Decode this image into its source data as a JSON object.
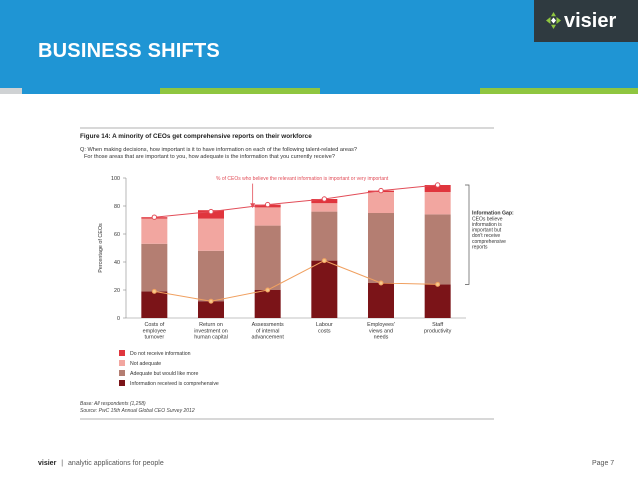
{
  "slide": {
    "title": "BUSINESS SHIFTS",
    "logo_text": "visier",
    "footer_brand": "visier",
    "footer_sep": "|",
    "footer_tagline": "analytic applications for people",
    "page_label": "Page 7"
  },
  "colors": {
    "header_blue": "#1f95d4",
    "logo_bg": "#2f3a40",
    "stripes": [
      "#cfd2d4",
      "#1f95d4",
      "#8fc640",
      "#1f95d4",
      "#8fc640"
    ],
    "not_received": "#e0353d",
    "not_adequate": "#f2a6a0",
    "adequate_more": "#b47e72",
    "comprehensive": "#7b1418",
    "important_line": "#e24d58",
    "comprehensive_line": "#f0a060"
  },
  "chart_data": {
    "type": "bar",
    "stacked": true,
    "title": "Figure 14: A minority of CEOs get comprehensive reports on their workforce",
    "question_line1": "Q: When making decisions, how important is it to have information on each of the following talent-related areas?",
    "question_line2": "For those areas that are important to you, how adequate is the information that you currently receive?",
    "ylabel": "Percentage of CEOs",
    "ylim": [
      0,
      100
    ],
    "yticks": [
      "0",
      "20",
      "40",
      "60",
      "80",
      "100"
    ],
    "categories": [
      [
        "Costs of",
        "employee",
        "turnover"
      ],
      [
        "Return on",
        "investment on",
        "human capital"
      ],
      [
        "Assessments",
        "of internal",
        "advancement"
      ],
      [
        "Labour",
        "costs"
      ],
      [
        "Employees'",
        "views and",
        "needs"
      ],
      [
        "Staff",
        "productivity"
      ]
    ],
    "series": [
      {
        "name": "Information received is comprehensive",
        "values": [
          19,
          12,
          20,
          41,
          25,
          24
        ]
      },
      {
        "name": "Adequate but would like more",
        "values": [
          34,
          36,
          46,
          35,
          50,
          50
        ]
      },
      {
        "name": "Not adequate",
        "values": [
          18,
          23,
          13,
          6,
          15,
          16
        ]
      },
      {
        "name": "Do not receive information",
        "values": [
          1,
          6,
          2,
          3,
          1,
          5
        ]
      }
    ],
    "legend_order": [
      "Do not receive information",
      "Not adequate",
      "Adequate but would like more",
      "Information received is comprehensive"
    ],
    "important_line": [
      72,
      76,
      81,
      85,
      91,
      95
    ],
    "comprehensive_line": [
      19,
      12,
      20,
      41,
      25,
      24
    ],
    "annotation_important": "% of CEOs who believe the relevant information is important or very important",
    "gap_title": "Information Gap:",
    "gap_text": [
      "CEOs believe",
      "information is",
      "important but",
      "don't receive",
      "comprehensive",
      "reports"
    ],
    "base": "Base: All respondents (1,258)",
    "source": "Source: PwC 15th Annual Global CEO Survey 2012"
  }
}
